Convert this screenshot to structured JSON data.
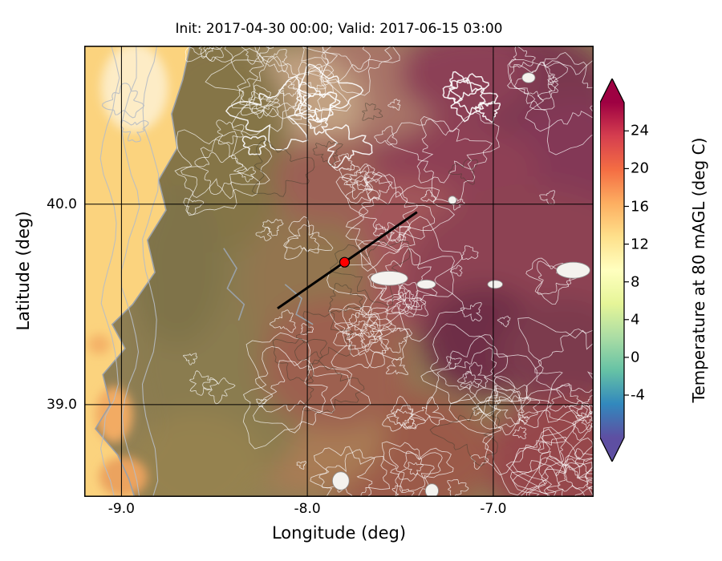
{
  "chart_data": {
    "type": "heatmap",
    "title": "Init: 2017-04-30 00:00; Valid: 2017-06-15 03:00",
    "xlabel": "Longitude (deg)",
    "ylabel": "Latitude (deg)",
    "xlim": [
      -9.2,
      -6.46
    ],
    "ylim": [
      38.54,
      40.79
    ],
    "xticks": [
      -9.0,
      -8.0,
      -7.0
    ],
    "xtick_labels": [
      "-9.0",
      "-8.0",
      "-7.0"
    ],
    "yticks": [
      39.0,
      40.0
    ],
    "ytick_labels": [
      "39.0",
      "40.0"
    ],
    "grid": true,
    "grid_color": "#000000",
    "colorbar": {
      "label": "Temperature at 80 mAGL (deg C)",
      "ticks": [
        -4,
        0,
        4,
        8,
        12,
        16,
        20,
        24
      ],
      "range": [
        -8.5,
        27
      ],
      "extend": "both",
      "colormap": "Spectral_r",
      "colormap_stops": [
        "#5e4fa2",
        "#3288bd",
        "#66c2a5",
        "#abdda4",
        "#e6f598",
        "#ffffbf",
        "#fee08b",
        "#fdae61",
        "#f46d43",
        "#d53e4f",
        "#9e0142"
      ]
    },
    "marker": {
      "lon": -7.8,
      "lat": 39.71,
      "color": "#ff0000"
    },
    "transect": {
      "from": [
        -8.16,
        39.48
      ],
      "to": [
        -7.41,
        39.96
      ],
      "color": "#000000"
    },
    "temperature_grid": {
      "lons": [
        -9.1,
        -8.7,
        -8.3,
        -7.9,
        -7.5,
        -7.1,
        -6.7
      ],
      "lats": [
        40.6,
        40.2,
        39.8,
        39.4,
        39.0,
        38.7
      ],
      "values_degC": [
        [
          13,
          15,
          18,
          22,
          24,
          25,
          26
        ],
        [
          13,
          15,
          19,
          23,
          25,
          26,
          27
        ],
        [
          13,
          16,
          20,
          24,
          24,
          25,
          26
        ],
        [
          13,
          16,
          19,
          23,
          25,
          26,
          26
        ],
        [
          14,
          16,
          18,
          22,
          24,
          25,
          25
        ],
        [
          14,
          17,
          19,
          22,
          24,
          24,
          25
        ]
      ]
    },
    "map": {
      "base_color": "#8f7f55",
      "ocean_color": "#fbd37e",
      "coast_color": "#9aa0a8",
      "coast": [
        [
          -8.63,
          40.79
        ],
        [
          -8.67,
          40.62
        ],
        [
          -8.73,
          40.45
        ],
        [
          -8.7,
          40.28
        ],
        [
          -8.8,
          40.12
        ],
        [
          -8.76,
          39.97
        ],
        [
          -8.86,
          39.82
        ],
        [
          -8.82,
          39.66
        ],
        [
          -8.94,
          39.5
        ],
        [
          -9.05,
          39.4
        ],
        [
          -8.98,
          39.28
        ],
        [
          -9.1,
          39.15
        ],
        [
          -9.06,
          39.0
        ],
        [
          -9.14,
          38.88
        ],
        [
          -9.02,
          38.75
        ],
        [
          -8.96,
          38.63
        ],
        [
          -8.93,
          38.54
        ]
      ],
      "blobs": [
        [
          -6.9,
          40.55,
          0.55,
          0.33,
          "#7a3850"
        ],
        [
          -6.55,
          40.1,
          0.45,
          0.42,
          "#833956"
        ],
        [
          -7.45,
          40.18,
          0.7,
          0.27,
          "#8e4154"
        ],
        [
          -7.7,
          40.58,
          0.45,
          0.28,
          "#a87468"
        ],
        [
          -8.1,
          40.5,
          0.4,
          0.27,
          "#c2a283"
        ],
        [
          -7.55,
          39.75,
          0.55,
          0.38,
          "#a2565a"
        ],
        [
          -6.8,
          39.6,
          0.7,
          0.5,
          "#8d4352"
        ],
        [
          -7.05,
          39.32,
          0.33,
          0.27,
          "#6e2f47"
        ],
        [
          -6.62,
          39.25,
          0.35,
          0.28,
          "#7b3a4e"
        ],
        [
          -6.6,
          38.72,
          0.45,
          0.33,
          "#96474b"
        ],
        [
          -7.5,
          38.75,
          0.5,
          0.33,
          "#9b5a48"
        ],
        [
          -8.0,
          38.9,
          0.42,
          0.35,
          "#a97c55"
        ],
        [
          -8.45,
          39.3,
          0.5,
          0.75,
          "#8a7b4f"
        ],
        [
          -8.5,
          40.3,
          0.42,
          0.55,
          "#857547"
        ],
        [
          -8.7,
          39.7,
          0.25,
          0.4,
          "#7f7348"
        ],
        [
          -8.0,
          39.6,
          0.33,
          0.42,
          "#93744f"
        ],
        [
          -7.85,
          39.2,
          0.4,
          0.33,
          "#9d6050"
        ],
        [
          -7.9,
          40.12,
          0.28,
          0.22,
          "#9c6055"
        ],
        [
          -8.6,
          38.68,
          0.38,
          0.28,
          "#95824f"
        ],
        [
          -7.15,
          40.65,
          0.35,
          0.22,
          "#8c4056"
        ]
      ],
      "ocean_blobs": [
        [
          -9.04,
          38.95,
          0.1,
          0.14,
          "#f2ab63"
        ],
        [
          -8.99,
          38.64,
          0.13,
          0.1,
          "#eba35f"
        ],
        [
          -9.12,
          39.3,
          0.06,
          0.05,
          "#f4b267"
        ],
        [
          -8.93,
          40.58,
          0.18,
          0.22,
          "#fdecc6"
        ]
      ],
      "patches": [
        [
          -7.56,
          39.63,
          0.1,
          0.035
        ],
        [
          -7.36,
          39.6,
          0.05,
          0.022
        ],
        [
          -6.57,
          39.67,
          0.09,
          0.04
        ],
        [
          -6.99,
          39.6,
          0.04,
          0.02
        ],
        [
          -7.82,
          38.62,
          0.045,
          0.045
        ],
        [
          -7.33,
          38.57,
          0.035,
          0.035
        ],
        [
          -6.81,
          40.63,
          0.035,
          0.025
        ],
        [
          -7.22,
          40.02,
          0.022,
          0.02
        ]
      ],
      "rivers": [
        [
          [
            -8.45,
            39.78
          ],
          [
            -8.38,
            39.68
          ],
          [
            -8.43,
            39.58
          ],
          [
            -8.34,
            39.5
          ],
          [
            -8.37,
            39.42
          ]
        ],
        [
          [
            -8.12,
            39.6
          ],
          [
            -8.03,
            39.53
          ],
          [
            -8.06,
            39.45
          ],
          [
            -7.97,
            39.4
          ]
        ]
      ]
    }
  }
}
